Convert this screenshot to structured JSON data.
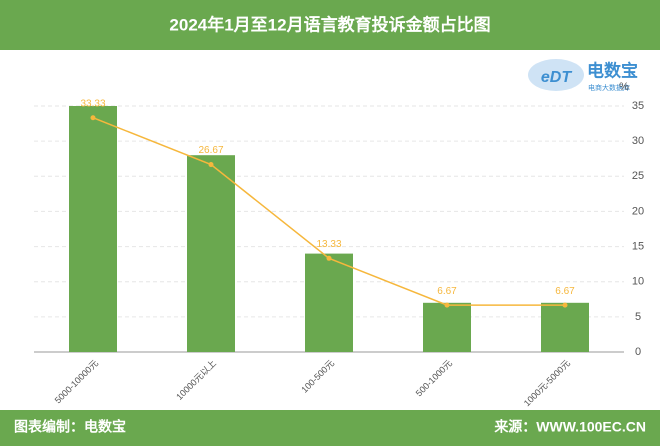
{
  "chart_data": {
    "type": "bar-line",
    "title": "2024年1月至12月语言教育投诉金额占比图",
    "unit_label": "%",
    "logo": {
      "mark": "eDT",
      "name": "电数宝",
      "tagline": "电商大数据库"
    },
    "categories": [
      "5000-10000元",
      "10000元以上",
      "100-500元",
      "500-1000元",
      "1000元-5000元"
    ],
    "bar_values": [
      35,
      28,
      14,
      7,
      7
    ],
    "bar_color": "#6aa84f",
    "line_values": [
      33.33,
      26.67,
      13.33,
      6.67,
      6.67
    ],
    "line_color": "#f6b73c",
    "ylim": [
      0,
      35
    ],
    "yticks": [
      0,
      5,
      10,
      15,
      20,
      25,
      30,
      35
    ],
    "grid": true,
    "footer": {
      "left": "图表编制：电数宝",
      "right": "来源：WWW.100EC.CN"
    }
  }
}
